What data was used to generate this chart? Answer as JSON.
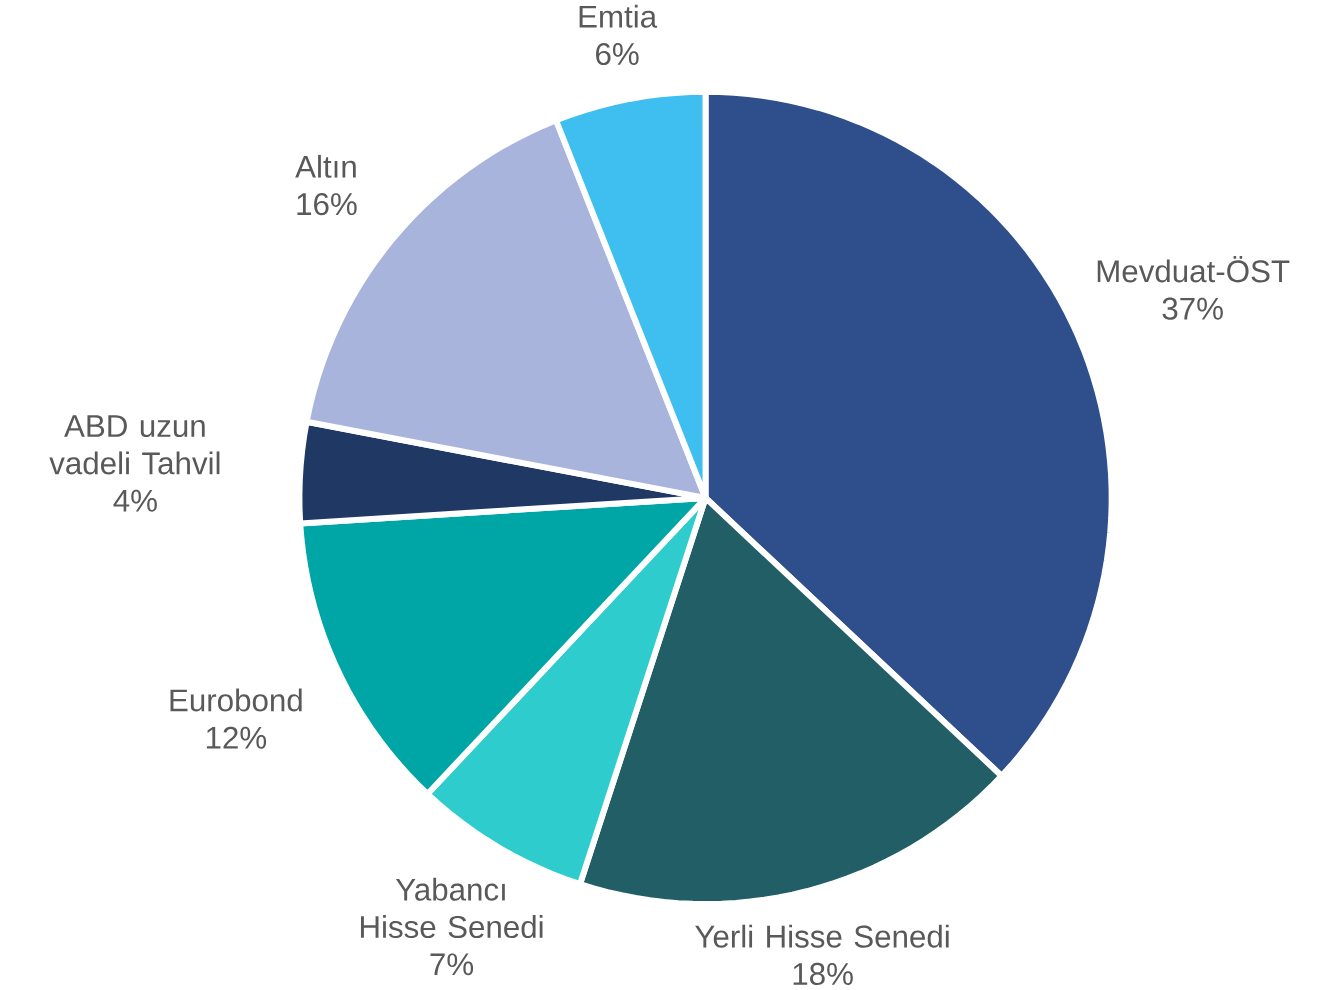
{
  "chart_data": {
    "type": "pie",
    "categories": [
      "Mevduat-ÖST",
      "Yerli Hisse Senedi",
      "Yabancı Hisse Senedi",
      "Eurobond",
      "ABD uzun vadeli Tahvil",
      "Altın",
      "Emtia"
    ],
    "values": [
      37,
      18,
      7,
      12,
      4,
      16,
      6
    ],
    "value_labels": [
      "37%",
      "18%",
      "7%",
      "12%",
      "4%",
      "16%",
      "6%"
    ],
    "colors": [
      "#2e4f8c",
      "#215e66",
      "#2ecccc",
      "#00a5a5",
      "#1f3864",
      "#a8b4dc",
      "#3fbfef"
    ]
  }
}
